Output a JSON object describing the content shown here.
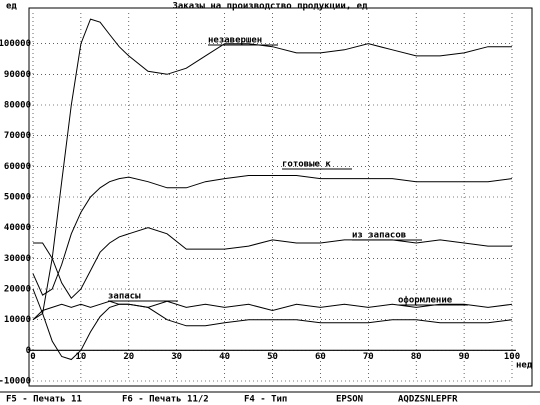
{
  "chart_data": {
    "type": "line",
    "title": "Заказы на производство продукции, ед",
    "y_label": "ед",
    "x_label": "нед",
    "x": [
      0,
      2,
      4,
      6,
      8,
      10,
      12,
      14,
      16,
      18,
      20,
      24,
      28,
      32,
      36,
      40,
      45,
      50,
      55,
      60,
      65,
      70,
      75,
      80,
      85,
      90,
      95,
      100
    ],
    "xlim": [
      0,
      100
    ],
    "xticks": [
      0,
      10,
      20,
      30,
      40,
      50,
      60,
      70,
      80,
      90,
      100
    ],
    "ylim": [
      -10000,
      110000
    ],
    "yticks": [
      -10000,
      0,
      10000,
      20000,
      30000,
      40000,
      50000,
      60000,
      70000,
      80000,
      90000,
      100000
    ],
    "grid": true,
    "color": "#000000",
    "series": [
      {
        "name": "незавершен",
        "values": [
          10000,
          12000,
          30000,
          55000,
          80000,
          100000,
          108000,
          107000,
          103000,
          99000,
          96000,
          91000,
          90000,
          92000,
          96000,
          100000,
          100000,
          99000,
          97000,
          97000,
          98000,
          100000,
          98000,
          96000,
          96000,
          97000,
          99000,
          99000
        ]
      },
      {
        "name": "готовые к",
        "values": [
          25000,
          18000,
          20000,
          28000,
          38000,
          45000,
          50000,
          53000,
          55000,
          56000,
          56500,
          55000,
          53000,
          53000,
          55000,
          56000,
          57000,
          57000,
          57000,
          56000,
          56000,
          56000,
          56000,
          55000,
          55000,
          55000,
          55000,
          56000
        ]
      },
      {
        "name": "из запасов",
        "values": [
          35000,
          35000,
          30000,
          22000,
          17000,
          20000,
          26000,
          32000,
          35000,
          37000,
          38000,
          40000,
          38000,
          33000,
          33000,
          33000,
          34000,
          36000,
          35000,
          35000,
          36000,
          36000,
          36000,
          35000,
          36000,
          35000,
          34000,
          34000
        ]
      },
      {
        "name": "запасы",
        "values": [
          20000,
          12000,
          3000,
          -2000,
          -3000,
          0,
          6000,
          11000,
          14000,
          15000,
          15000,
          14000,
          10000,
          8000,
          8000,
          9000,
          10000,
          10000,
          10000,
          9000,
          9000,
          9000,
          10000,
          10000,
          9000,
          9000,
          9000,
          10000
        ]
      },
      {
        "name": "оформление",
        "values": [
          10000,
          13000,
          14000,
          15000,
          14000,
          15000,
          14000,
          15000,
          16000,
          15000,
          15000,
          14000,
          16000,
          14000,
          15000,
          14000,
          15000,
          13000,
          15000,
          14000,
          15000,
          14000,
          15000,
          14000,
          15000,
          15000,
          14000,
          15000
        ]
      }
    ]
  },
  "footer": [
    "F5 - Печать 11",
    "F6 - Печать 11/2",
    "F4 - Тип",
    "EPSON",
    "AQDZSNLEPFR"
  ]
}
